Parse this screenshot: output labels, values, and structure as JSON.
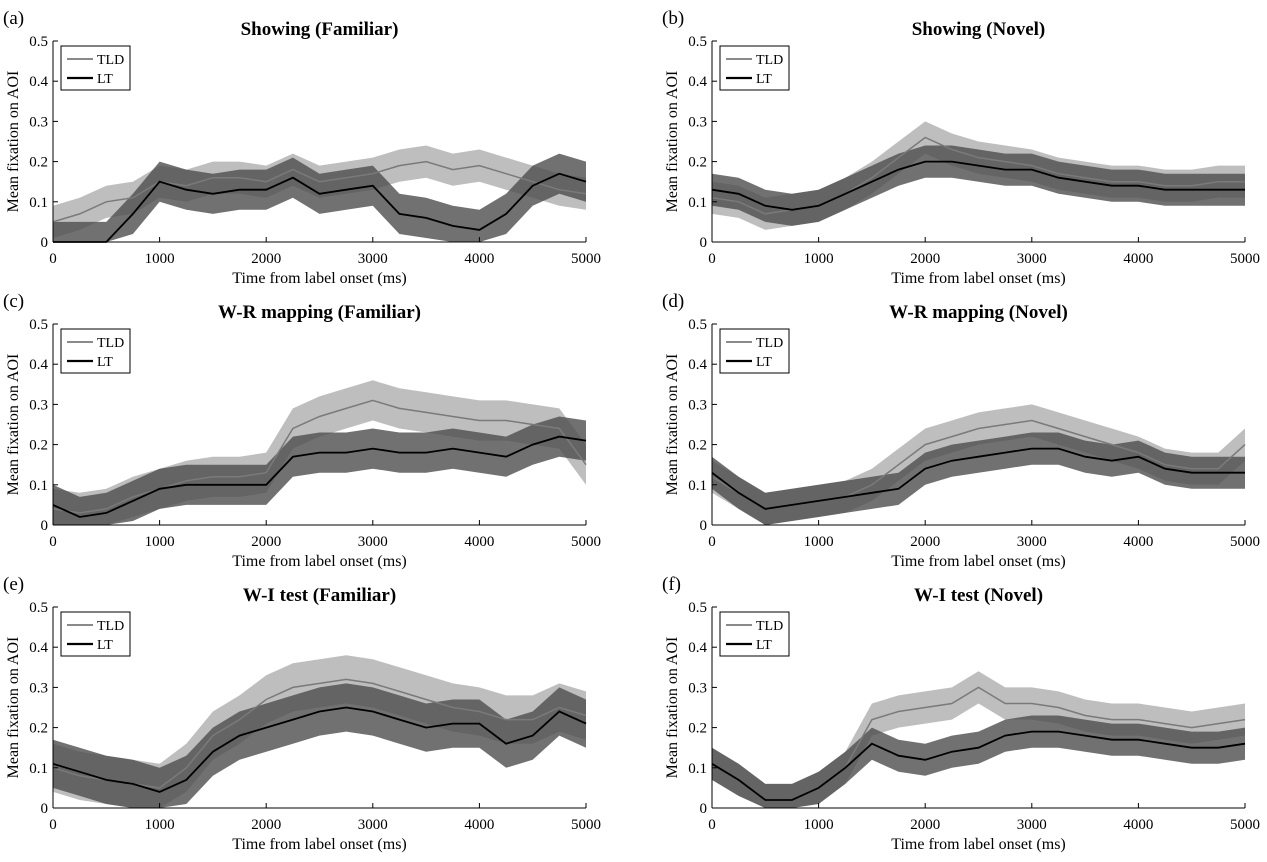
{
  "figure": {
    "legend_labels": [
      "TLD",
      "LT"
    ],
    "colors": {
      "tld_line": "#7a7a7a",
      "tld_band": "#b3b3b3",
      "lt_line": "#000000",
      "lt_band": "#4d4d4d"
    }
  },
  "chart_data": [
    {
      "panel": "(a)",
      "title": "Showing (Familiar)",
      "type": "line",
      "xlabel": "Time from label onset (ms)",
      "ylabel": "Mean fixation on AOI",
      "xlim": [
        0,
        5000
      ],
      "ylim": [
        0,
        0.5
      ],
      "xticks": [
        "0",
        "1000",
        "2000",
        "3000",
        "4000",
        "5000"
      ],
      "yticks": [
        "0",
        "0.1",
        "0.2",
        "0.3",
        "0.4",
        "0.5"
      ],
      "legend": "top-left",
      "x": [
        0,
        250,
        500,
        750,
        1000,
        1250,
        1500,
        1750,
        2000,
        2250,
        2500,
        2750,
        3000,
        3250,
        3500,
        3750,
        4000,
        4250,
        4500,
        4750,
        5000
      ],
      "series": [
        {
          "name": "TLD",
          "mean": [
            0.05,
            0.07,
            0.1,
            0.11,
            0.15,
            0.14,
            0.16,
            0.16,
            0.15,
            0.18,
            0.15,
            0.16,
            0.17,
            0.19,
            0.2,
            0.18,
            0.19,
            0.17,
            0.15,
            0.13,
            0.12
          ],
          "halfwidth": 0.04
        },
        {
          "name": "LT",
          "mean": [
            0.0,
            0.0,
            0.0,
            0.07,
            0.15,
            0.13,
            0.12,
            0.13,
            0.13,
            0.16,
            0.12,
            0.13,
            0.14,
            0.07,
            0.06,
            0.04,
            0.03,
            0.07,
            0.14,
            0.17,
            0.15
          ],
          "halfwidth": 0.05
        }
      ]
    },
    {
      "panel": "(b)",
      "title": "Showing (Novel)",
      "type": "line",
      "xlabel": "Time from label onset (ms)",
      "ylabel": "Mean fixation on AOI",
      "xlim": [
        0,
        5000
      ],
      "ylim": [
        0,
        0.5
      ],
      "xticks": [
        "0",
        "1000",
        "2000",
        "3000",
        "4000",
        "5000"
      ],
      "yticks": [
        "0",
        "0.1",
        "0.2",
        "0.3",
        "0.4",
        "0.5"
      ],
      "legend": "top-left",
      "x": [
        0,
        250,
        500,
        750,
        1000,
        1250,
        1500,
        1750,
        2000,
        2250,
        2500,
        2750,
        3000,
        3250,
        3500,
        3750,
        4000,
        4250,
        4500,
        4750,
        5000
      ],
      "series": [
        {
          "name": "TLD",
          "mean": [
            0.11,
            0.1,
            0.07,
            0.08,
            0.09,
            0.12,
            0.16,
            0.21,
            0.26,
            0.23,
            0.21,
            0.2,
            0.19,
            0.17,
            0.16,
            0.15,
            0.15,
            0.14,
            0.14,
            0.15,
            0.15
          ],
          "halfwidth": 0.04
        },
        {
          "name": "LT",
          "mean": [
            0.13,
            0.12,
            0.09,
            0.08,
            0.09,
            0.12,
            0.15,
            0.18,
            0.2,
            0.2,
            0.19,
            0.18,
            0.18,
            0.16,
            0.15,
            0.14,
            0.14,
            0.13,
            0.13,
            0.13,
            0.13
          ],
          "halfwidth": 0.04
        }
      ]
    },
    {
      "panel": "(c)",
      "title": "W-R mapping (Familiar)",
      "type": "line",
      "xlabel": "Time from label onset (ms)",
      "ylabel": "Mean fixation on AOI",
      "xlim": [
        0,
        5000
      ],
      "ylim": [
        0,
        0.5
      ],
      "xticks": [
        "0",
        "1000",
        "2000",
        "3000",
        "4000",
        "5000"
      ],
      "yticks": [
        "0",
        "0.1",
        "0.2",
        "0.3",
        "0.4",
        "0.5"
      ],
      "legend": "top-left",
      "x": [
        0,
        250,
        500,
        750,
        1000,
        1250,
        1500,
        1750,
        2000,
        2250,
        2500,
        2750,
        3000,
        3250,
        3500,
        3750,
        4000,
        4250,
        4500,
        4750,
        5000
      ],
      "series": [
        {
          "name": "TLD",
          "mean": [
            0.04,
            0.03,
            0.04,
            0.07,
            0.09,
            0.11,
            0.12,
            0.12,
            0.13,
            0.24,
            0.27,
            0.29,
            0.31,
            0.29,
            0.28,
            0.27,
            0.26,
            0.26,
            0.25,
            0.24,
            0.15
          ],
          "halfwidth": 0.05
        },
        {
          "name": "LT",
          "mean": [
            0.05,
            0.02,
            0.03,
            0.06,
            0.09,
            0.1,
            0.1,
            0.1,
            0.1,
            0.17,
            0.18,
            0.18,
            0.19,
            0.18,
            0.18,
            0.19,
            0.18,
            0.17,
            0.2,
            0.22,
            0.21
          ],
          "halfwidth": 0.05
        }
      ]
    },
    {
      "panel": "(d)",
      "title": "W-R mapping (Novel)",
      "type": "line",
      "xlabel": "Time from label onset (ms)",
      "ylabel": "Mean fixation on AOI",
      "xlim": [
        0,
        5000
      ],
      "ylim": [
        0,
        0.5
      ],
      "xticks": [
        "0",
        "1000",
        "2000",
        "3000",
        "4000",
        "5000"
      ],
      "yticks": [
        "0",
        "0.1",
        "0.2",
        "0.3",
        "0.4",
        "0.5"
      ],
      "legend": "top-left",
      "x": [
        0,
        250,
        500,
        750,
        1000,
        1250,
        1500,
        1750,
        2000,
        2250,
        2500,
        2750,
        3000,
        3250,
        3500,
        3750,
        4000,
        4250,
        4500,
        4750,
        5000
      ],
      "series": [
        {
          "name": "TLD",
          "mean": [
            0.12,
            0.08,
            0.04,
            0.05,
            0.06,
            0.07,
            0.1,
            0.15,
            0.2,
            0.22,
            0.24,
            0.25,
            0.26,
            0.24,
            0.22,
            0.2,
            0.18,
            0.15,
            0.14,
            0.14,
            0.2
          ],
          "halfwidth": 0.04
        },
        {
          "name": "LT",
          "mean": [
            0.13,
            0.08,
            0.04,
            0.05,
            0.06,
            0.07,
            0.08,
            0.09,
            0.14,
            0.16,
            0.17,
            0.18,
            0.19,
            0.19,
            0.17,
            0.16,
            0.17,
            0.14,
            0.13,
            0.13,
            0.13
          ],
          "halfwidth": 0.04
        }
      ]
    },
    {
      "panel": "(e)",
      "title": "W-I test (Familiar)",
      "type": "line",
      "xlabel": "Time from label onset (ms)",
      "ylabel": "Mean fixation on AOI",
      "xlim": [
        0,
        5000
      ],
      "ylim": [
        0,
        0.5
      ],
      "xticks": [
        "0",
        "1000",
        "2000",
        "3000",
        "4000",
        "5000"
      ],
      "yticks": [
        "0",
        "0.1",
        "0.2",
        "0.3",
        "0.4",
        "0.5"
      ],
      "legend": "top-left",
      "x": [
        0,
        250,
        500,
        750,
        1000,
        1250,
        1500,
        1750,
        2000,
        2250,
        2500,
        2750,
        3000,
        3250,
        3500,
        3750,
        4000,
        4250,
        4500,
        4750,
        5000
      ],
      "series": [
        {
          "name": "TLD",
          "mean": [
            0.1,
            0.08,
            0.07,
            0.06,
            0.05,
            0.1,
            0.18,
            0.22,
            0.27,
            0.3,
            0.31,
            0.32,
            0.31,
            0.29,
            0.27,
            0.25,
            0.24,
            0.22,
            0.22,
            0.25,
            0.23
          ],
          "halfwidth": 0.06
        },
        {
          "name": "LT",
          "mean": [
            0.11,
            0.09,
            0.07,
            0.06,
            0.04,
            0.07,
            0.14,
            0.18,
            0.2,
            0.22,
            0.24,
            0.25,
            0.24,
            0.22,
            0.2,
            0.21,
            0.21,
            0.16,
            0.18,
            0.24,
            0.21
          ],
          "halfwidth": 0.06
        }
      ]
    },
    {
      "panel": "(f)",
      "title": "W-I test (Novel)",
      "type": "line",
      "xlabel": "Time from label onset (ms)",
      "ylabel": "Mean fixation on AOI",
      "xlim": [
        0,
        5000
      ],
      "ylim": [
        0,
        0.5
      ],
      "xticks": [
        "0",
        "1000",
        "2000",
        "3000",
        "4000",
        "5000"
      ],
      "yticks": [
        "0",
        "0.1",
        "0.2",
        "0.3",
        "0.4",
        "0.5"
      ],
      "legend": "top-left",
      "x": [
        0,
        250,
        500,
        750,
        1000,
        1250,
        1500,
        1750,
        2000,
        2250,
        2500,
        2750,
        3000,
        3250,
        3500,
        3750,
        4000,
        4250,
        4500,
        4750,
        5000
      ],
      "series": [
        {
          "name": "TLD",
          "mean": [
            0.11,
            0.07,
            0.02,
            0.02,
            0.05,
            0.1,
            0.22,
            0.24,
            0.25,
            0.26,
            0.3,
            0.26,
            0.26,
            0.25,
            0.23,
            0.22,
            0.22,
            0.21,
            0.2,
            0.21,
            0.22
          ],
          "halfwidth": 0.04
        },
        {
          "name": "LT",
          "mean": [
            0.11,
            0.07,
            0.02,
            0.02,
            0.05,
            0.1,
            0.16,
            0.13,
            0.12,
            0.14,
            0.15,
            0.18,
            0.19,
            0.19,
            0.18,
            0.17,
            0.17,
            0.16,
            0.15,
            0.15,
            0.16
          ],
          "halfwidth": 0.04
        }
      ]
    }
  ]
}
